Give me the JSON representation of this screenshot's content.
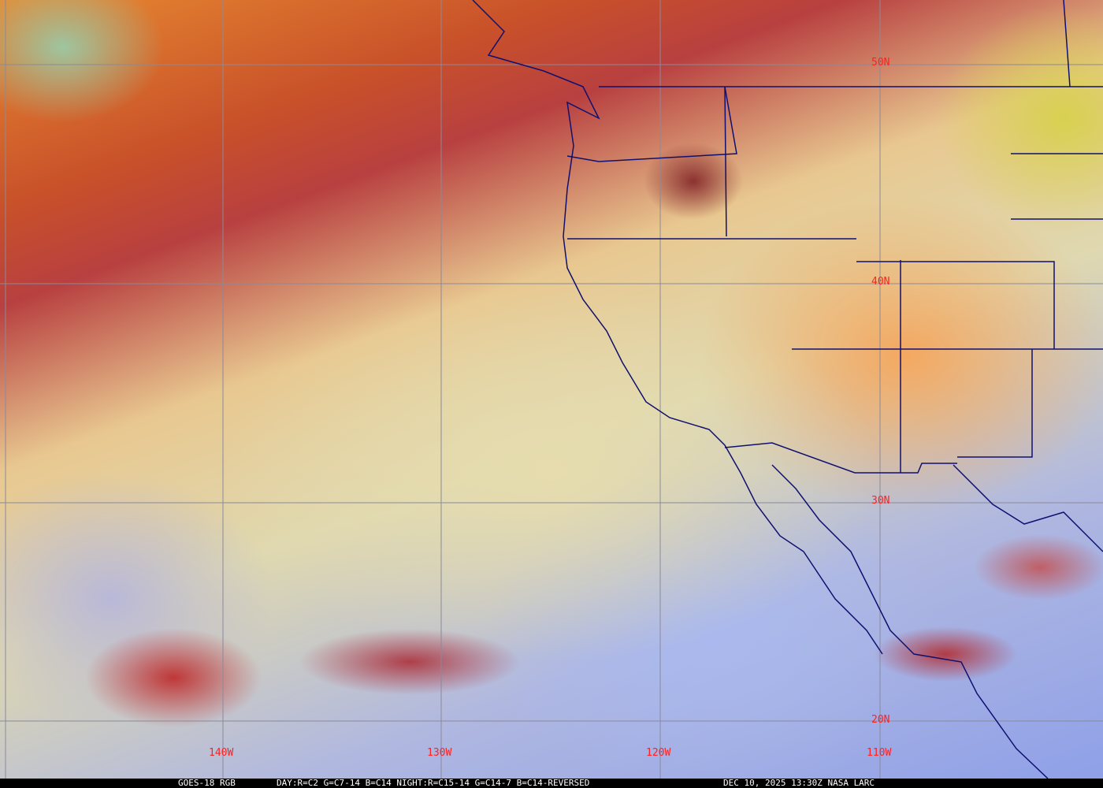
{
  "map": {
    "lat_labels": [
      "50N",
      "40N",
      "30N",
      "20N"
    ],
    "lon_labels": [
      "140W",
      "130W",
      "120W",
      "110W"
    ],
    "grid_color": "#8a8a9a",
    "border_color": "#101070",
    "label_color": "#ff2020"
  },
  "caption": {
    "product": "GOES-18 RGB",
    "recipe": "DAY:R=C2 G=C7-14 B=C14 NIGHT:R=C15-14 G=C14-7 B=C14-REVERSED",
    "timestamp": "DEC 10, 2025 13:30Z NASA LARC"
  }
}
